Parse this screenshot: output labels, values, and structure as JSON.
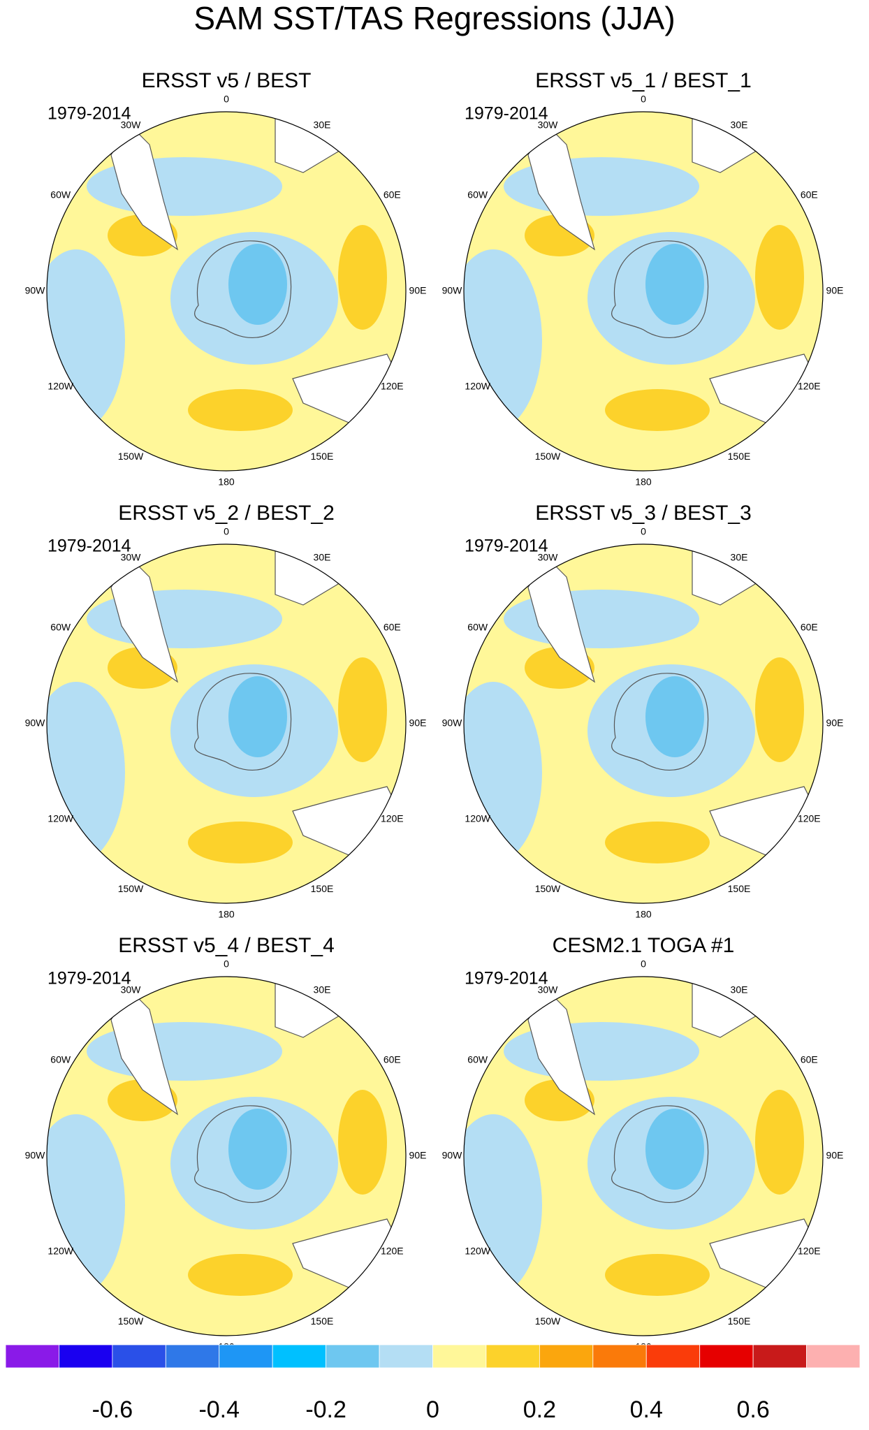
{
  "title": "SAM SST/TAS Regressions (JJA)",
  "panels": [
    {
      "title": "ERSST v5 / BEST",
      "period": "1979-2014"
    },
    {
      "title": "ERSST v5_1 / BEST_1",
      "period": "1979-2014"
    },
    {
      "title": "ERSST v5_2 / BEST_2",
      "period": "1979-2014"
    },
    {
      "title": "ERSST v5_3 / BEST_3",
      "period": "1979-2014"
    },
    {
      "title": "ERSST v5_4 / BEST_4",
      "period": "1979-2014"
    },
    {
      "title": "CESM2.1 TOGA #1",
      "period": "1979-2014"
    }
  ],
  "longitude_labels": [
    "0",
    "30E",
    "60E",
    "90E",
    "120E",
    "150E",
    "180",
    "150W",
    "120W",
    "90W",
    "60W",
    "30W"
  ],
  "colorbar": {
    "colors": [
      "#8a1ae8",
      "#1a00f0",
      "#2a50e8",
      "#2f78e8",
      "#1e96f5",
      "#00c0ff",
      "#6ec7f0",
      "#b4def4",
      "#fff799",
      "#fcd22b",
      "#fba60d",
      "#fa7a0a",
      "#fa3c0a",
      "#e60000",
      "#c81a1a",
      "#fdb0b0"
    ],
    "lim": [
      -0.8,
      0.8
    ],
    "ticks": [
      -0.6,
      -0.4,
      -0.2,
      0,
      0.2,
      0.4,
      0.6
    ]
  }
}
